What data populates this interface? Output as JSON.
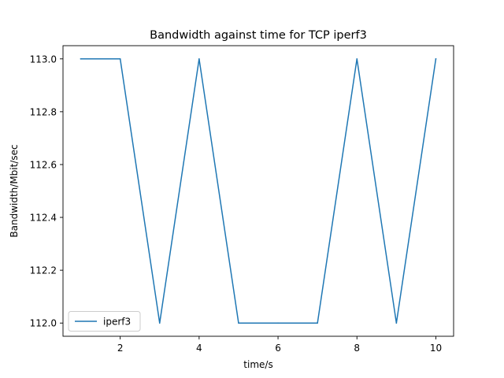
{
  "chart_data": {
    "type": "line",
    "title": "Bandwidth against time for TCP iperf3",
    "xlabel": "time/s",
    "ylabel": "Bandwidth/Mbit/sec",
    "xlim": [
      0.55,
      10.45
    ],
    "ylim": [
      111.95,
      113.05
    ],
    "xticks": [
      2,
      4,
      6,
      8,
      10
    ],
    "yticks": [
      112.0,
      112.2,
      112.4,
      112.6,
      112.8,
      113.0
    ],
    "xtick_labels": [
      "2",
      "4",
      "6",
      "8",
      "10"
    ],
    "ytick_labels": [
      "112.0",
      "112.2",
      "112.4",
      "112.6",
      "112.8",
      "113.0"
    ],
    "grid": false,
    "legend_position": "lower-left",
    "series": [
      {
        "name": "iperf3",
        "color": "#1f77b4",
        "x": [
          1,
          2,
          3,
          4,
          5,
          6,
          7,
          8,
          9,
          10
        ],
        "y": [
          113,
          113,
          112,
          113,
          112,
          112,
          112,
          113,
          112,
          113
        ]
      }
    ]
  }
}
